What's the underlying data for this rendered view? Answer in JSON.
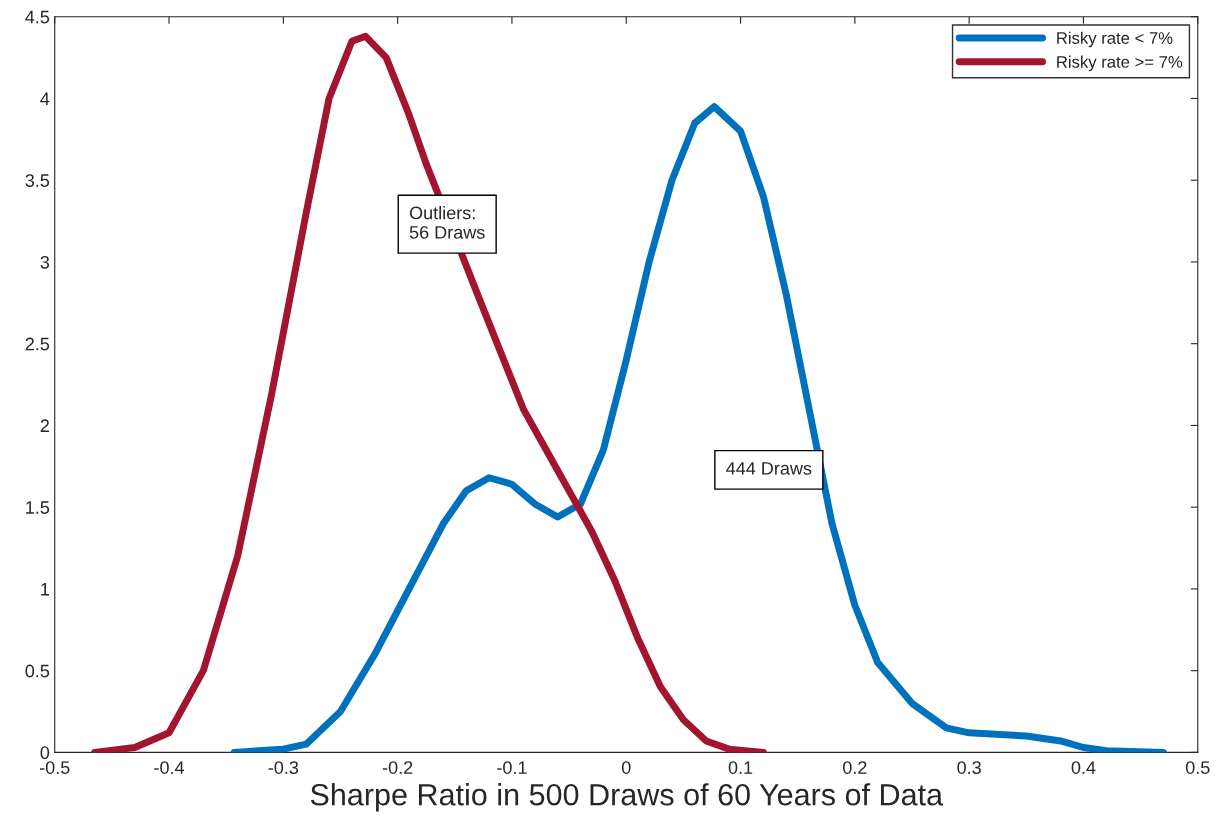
{
  "chart_data": {
    "type": "line",
    "xlabel": "Sharpe Ratio in 500 Draws of 60 Years of Data",
    "xlim": [
      -0.5,
      0.5
    ],
    "xticks": [
      -0.5,
      -0.4,
      -0.3,
      -0.2,
      -0.1,
      0,
      0.1,
      0.2,
      0.3,
      0.4,
      0.5
    ],
    "ylim": [
      0,
      4.5
    ],
    "yticks": [
      0,
      0.5,
      1,
      1.5,
      2,
      2.5,
      3,
      3.5,
      4,
      4.5
    ],
    "grid": false,
    "legend": "top right",
    "marker": "none",
    "line_style": "solid",
    "series": [
      {
        "name": "Risky rate < 7%",
        "color": "#0072bd",
        "x": [
          -0.343,
          -0.3,
          -0.28,
          -0.25,
          -0.22,
          -0.19,
          -0.16,
          -0.14,
          -0.12,
          -0.1,
          -0.08,
          -0.06,
          -0.04,
          -0.02,
          0.0,
          0.02,
          0.04,
          0.06,
          0.077,
          0.1,
          0.12,
          0.14,
          0.16,
          0.18,
          0.2,
          0.22,
          0.25,
          0.28,
          0.3,
          0.35,
          0.38,
          0.4,
          0.42,
          0.47
        ],
        "values": [
          0,
          0.02,
          0.05,
          0.25,
          0.6,
          1.0,
          1.4,
          1.6,
          1.68,
          1.64,
          1.52,
          1.44,
          1.52,
          1.85,
          2.4,
          3.0,
          3.5,
          3.85,
          3.95,
          3.8,
          3.4,
          2.8,
          2.1,
          1.4,
          0.9,
          0.55,
          0.3,
          0.15,
          0.12,
          0.1,
          0.07,
          0.03,
          0.01,
          0
        ]
      },
      {
        "name": "Risky rate >= 7%",
        "color": "#a2142f",
        "x": [
          -0.465,
          -0.43,
          -0.4,
          -0.37,
          -0.34,
          -0.31,
          -0.28,
          -0.26,
          -0.24,
          -0.228,
          -0.21,
          -0.19,
          -0.175,
          -0.13,
          -0.11,
          -0.09,
          -0.07,
          -0.05,
          -0.03,
          -0.01,
          0.01,
          0.03,
          0.05,
          0.07,
          0.09,
          0.12
        ],
        "values": [
          0,
          0.03,
          0.12,
          0.5,
          1.2,
          2.2,
          3.3,
          4.0,
          4.35,
          4.38,
          4.25,
          3.9,
          3.6,
          2.8,
          2.45,
          2.1,
          1.85,
          1.6,
          1.35,
          1.05,
          0.7,
          0.4,
          0.2,
          0.07,
          0.02,
          0
        ]
      }
    ],
    "annotations": [
      "Outliers:\n56 Draws",
      "444 Draws"
    ]
  }
}
